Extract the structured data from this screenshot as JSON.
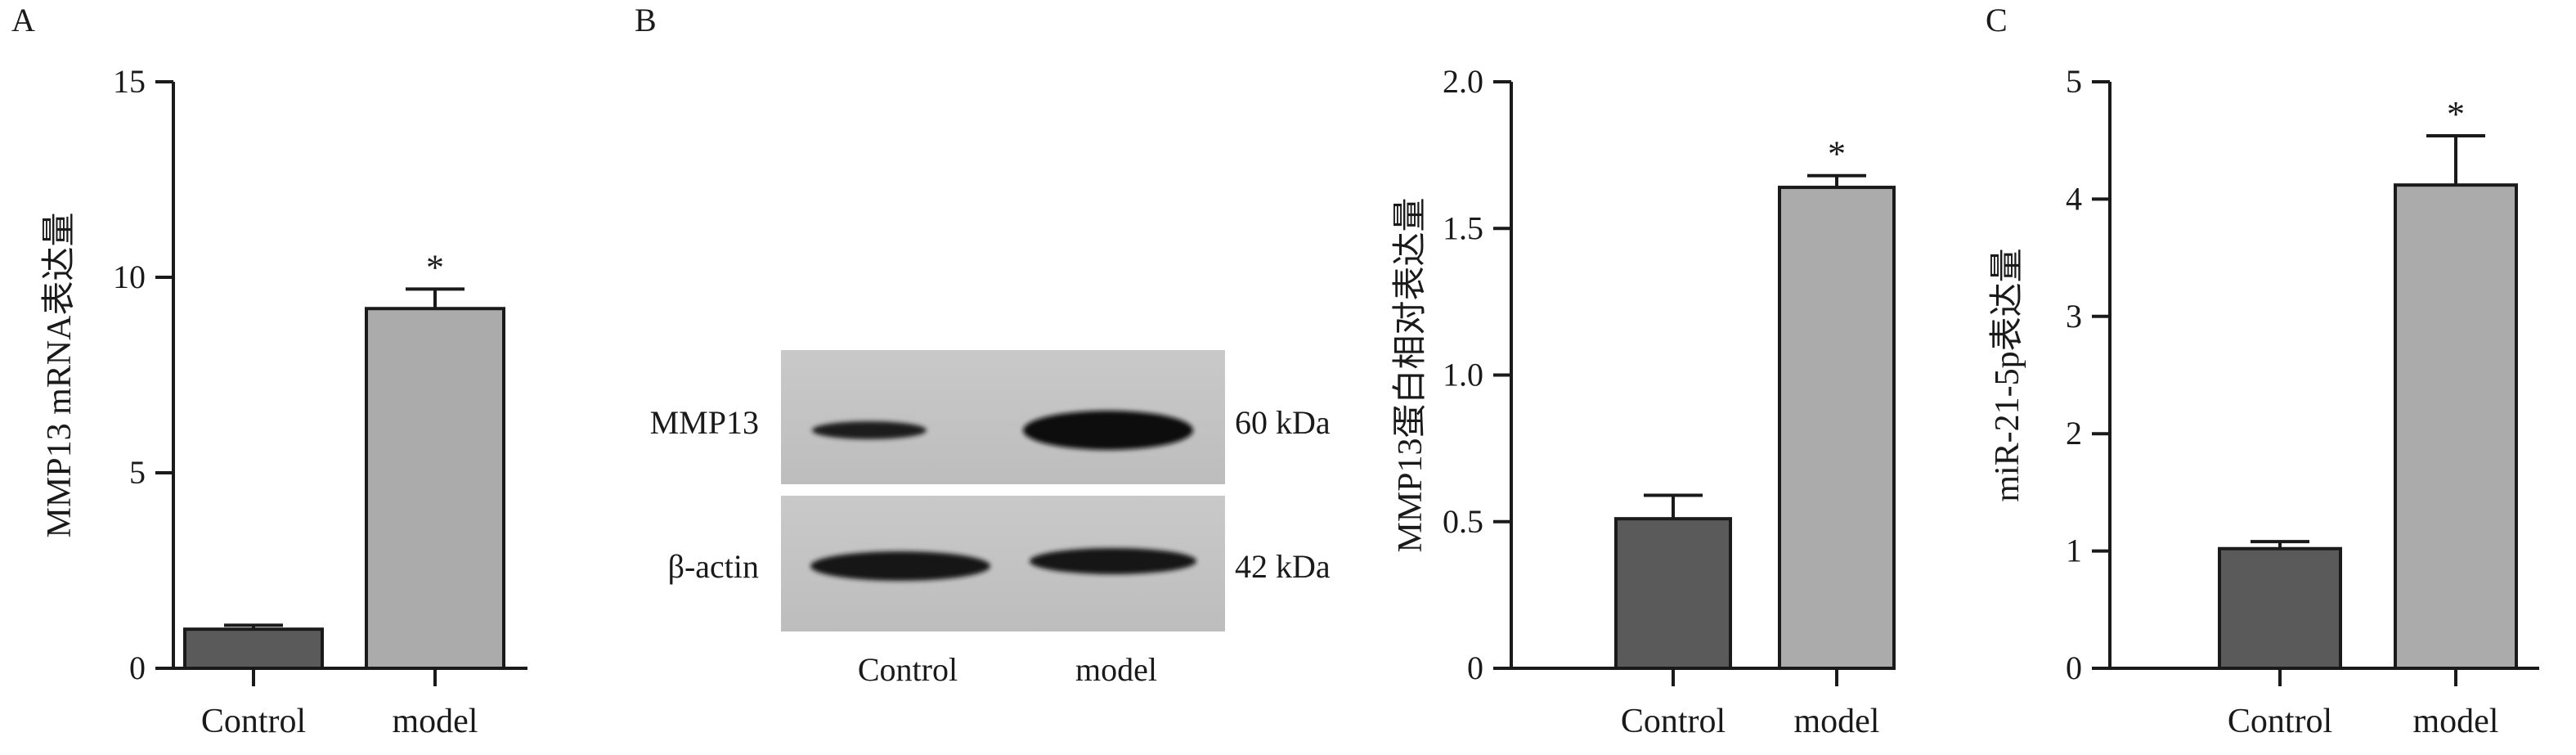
{
  "panels": {
    "A": {
      "letter": "A"
    },
    "B": {
      "letter": "B",
      "blot": {
        "rows": [
          {
            "label": "MMP13",
            "size": "60 kDa"
          },
          {
            "label": "β-actin",
            "size": "42 kDa"
          }
        ],
        "lanes": [
          "Control",
          "model"
        ]
      }
    },
    "C": {
      "letter": "C"
    }
  },
  "colors": {
    "control": "#5a5a5a",
    "model": "#ababab",
    "axis": "#1a1a1a"
  },
  "chart_data": [
    {
      "type": "bar",
      "panel": "A",
      "categories": [
        "Control",
        "model"
      ],
      "values": [
        1.0,
        9.2
      ],
      "errors": [
        0.1,
        0.5
      ],
      "significance": [
        "",
        "*"
      ],
      "ylabel": "MMP13 mRNA表达量",
      "xlabel": "",
      "ylim": [
        0,
        15
      ],
      "yticks": [
        "0",
        "5",
        "10",
        "15"
      ]
    },
    {
      "type": "bar",
      "panel": "B",
      "categories": [
        "Control",
        "model"
      ],
      "values": [
        0.51,
        1.64
      ],
      "errors": [
        0.08,
        0.04
      ],
      "significance": [
        "",
        "*"
      ],
      "ylabel": "MMP13蛋白相对表达量",
      "xlabel": "",
      "ylim": [
        0,
        2.0
      ],
      "yticks": [
        "0",
        "0.5",
        "1.0",
        "1.5",
        "2.0"
      ]
    },
    {
      "type": "bar",
      "panel": "C",
      "categories": [
        "Control",
        "model"
      ],
      "values": [
        1.02,
        4.12
      ],
      "errors": [
        0.06,
        0.42
      ],
      "significance": [
        "",
        "*"
      ],
      "ylabel": "miR-21-5p表达量",
      "xlabel": "",
      "ylim": [
        0,
        5
      ],
      "yticks": [
        "0",
        "1",
        "2",
        "3",
        "4",
        "5"
      ]
    }
  ]
}
